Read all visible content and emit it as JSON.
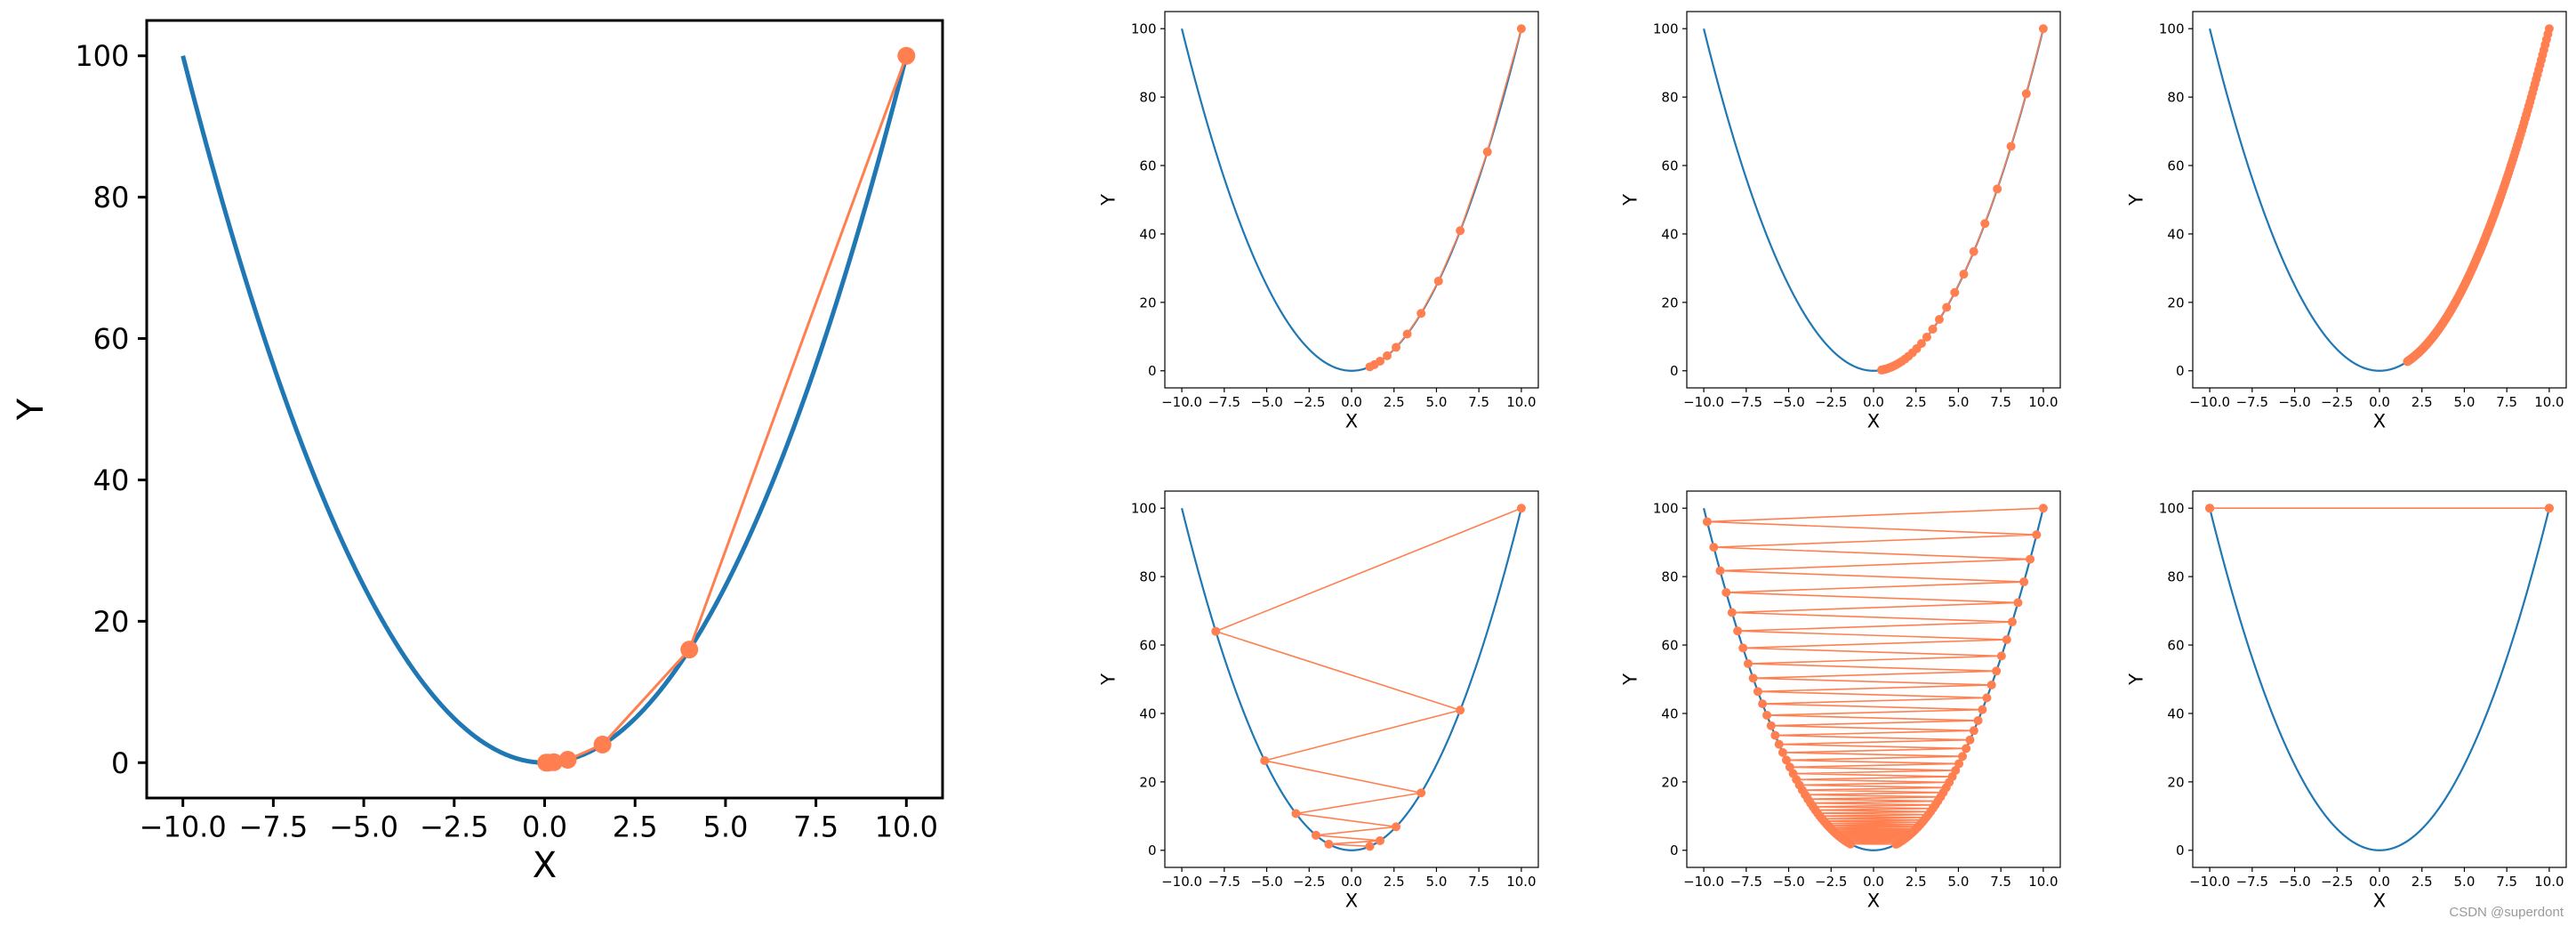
{
  "colors": {
    "curve": "#1f77b4",
    "path": "#ff7f50"
  },
  "watermark": "CSDN @superdont",
  "chart_data": [
    {
      "type": "line",
      "xlabel": "X",
      "ylabel": "Y",
      "xlim": [
        -11,
        11
      ],
      "ylim": [
        -5,
        105
      ],
      "xticks": [
        -10.0,
        -7.5,
        -5.0,
        -2.5,
        0.0,
        2.5,
        5.0,
        7.5,
        10.0
      ],
      "xtick_labels": [
        "−10.0",
        "−7.5",
        "−5.0",
        "−2.5",
        "0.0",
        "2.5",
        "5.0",
        "7.5",
        "10.0"
      ],
      "yticks": [
        0,
        20,
        40,
        60,
        80,
        100
      ],
      "ytick_labels": [
        "0",
        "20",
        "40",
        "60",
        "80",
        "100"
      ],
      "curve": {
        "x_range": [
          -10,
          10
        ],
        "function": "y = x^2"
      },
      "path_x": [
        10,
        4,
        1.6,
        0.64,
        0.256,
        0.1024,
        0.041
      ]
    },
    {
      "type": "line",
      "xlabel": "X",
      "ylabel": "Y",
      "xlim": [
        -11,
        11
      ],
      "ylim": [
        -5,
        105
      ],
      "xticks": [
        -10.0,
        -7.5,
        -5.0,
        -2.5,
        0.0,
        2.5,
        5.0,
        7.5,
        10.0
      ],
      "xtick_labels": [
        "−10.0",
        "−7.5",
        "−5.0",
        "−2.5",
        "0.0",
        "2.5",
        "5.0",
        "7.5",
        "10.0"
      ],
      "yticks": [
        0,
        20,
        40,
        60,
        80,
        100
      ],
      "ytick_labels": [
        "0",
        "20",
        "40",
        "60",
        "80",
        "100"
      ],
      "curve": {
        "x_range": [
          -10,
          10
        ],
        "function": "y = x^2"
      },
      "path_x": [
        10,
        8,
        6.4,
        5.12,
        4.096,
        3.277,
        2.621,
        2.097,
        1.678,
        1.342,
        1.074
      ]
    },
    {
      "type": "line",
      "xlabel": "X",
      "ylabel": "Y",
      "xlim": [
        -11,
        11
      ],
      "ylim": [
        -5,
        105
      ],
      "xticks": [
        -10.0,
        -7.5,
        -5.0,
        -2.5,
        0.0,
        2.5,
        5.0,
        7.5,
        10.0
      ],
      "xtick_labels": [
        "−10.0",
        "−7.5",
        "−5.0",
        "−2.5",
        "0.0",
        "2.5",
        "5.0",
        "7.5",
        "10.0"
      ],
      "yticks": [
        0,
        20,
        40,
        60,
        80,
        100
      ],
      "ytick_labels": [
        "0",
        "20",
        "40",
        "60",
        "80",
        "100"
      ],
      "curve": {
        "x_range": [
          -10,
          10
        ],
        "function": "y = x^2"
      },
      "path_x": [
        10,
        9,
        8.1,
        7.29,
        6.561,
        5.905,
        5.314,
        4.783,
        4.305,
        3.874,
        3.487,
        3.138,
        2.824,
        2.542,
        2.288,
        2.059,
        1.853,
        1.668,
        1.501,
        1.351,
        1.216,
        1.094,
        0.985,
        0.886,
        0.798,
        0.718,
        0.646,
        0.581,
        0.523,
        0.471
      ]
    },
    {
      "type": "line",
      "xlabel": "X",
      "ylabel": "Y",
      "xlim": [
        -11,
        11
      ],
      "ylim": [
        -5,
        105
      ],
      "xticks": [
        -10.0,
        -7.5,
        -5.0,
        -2.5,
        0.0,
        2.5,
        5.0,
        7.5,
        10.0
      ],
      "xtick_labels": [
        "−10.0",
        "−7.5",
        "−5.0",
        "−2.5",
        "0.0",
        "2.5",
        "5.0",
        "7.5",
        "10.0"
      ],
      "yticks": [
        0,
        20,
        40,
        60,
        80,
        100
      ],
      "ytick_labels": [
        "0",
        "20",
        "40",
        "60",
        "80",
        "100"
      ],
      "curve": {
        "x_range": [
          -10,
          10
        ],
        "function": "y = x^2"
      },
      "path_x": [
        10,
        9.92,
        9.841,
        9.763,
        9.685,
        9.608,
        9.531,
        9.455,
        9.379,
        9.304,
        9.23,
        9.156,
        9.083,
        9.01,
        8.938,
        8.866,
        8.795,
        8.725,
        8.655,
        8.586,
        8.517,
        8.449,
        8.381,
        8.314,
        8.248,
        8.182,
        8.116,
        8.051,
        7.987,
        7.923,
        7.86,
        7.797,
        7.735,
        7.673,
        7.611,
        7.55,
        7.49,
        7.43,
        7.371,
        7.312,
        7.253,
        7.195,
        7.138,
        7.081,
        7.024,
        6.968,
        6.912,
        6.857,
        6.802,
        6.748,
        6.694,
        6.64,
        6.587,
        6.534,
        6.482,
        6.43,
        6.379,
        6.328,
        6.277,
        6.227,
        6.177,
        6.128,
        6.079,
        6.03,
        5.982,
        5.934,
        5.887,
        5.839,
        5.793,
        5.746,
        5.7,
        5.655,
        5.609,
        5.565,
        5.52,
        5.476,
        5.432,
        5.389,
        5.346,
        5.303,
        5.26,
        5.218,
        5.177,
        5.135,
        5.094,
        5.053,
        5.013,
        4.973,
        4.933,
        4.894,
        4.855,
        4.816,
        4.777,
        4.739,
        4.701,
        4.664,
        4.626,
        4.589,
        4.553,
        4.516,
        4.48,
        4.444,
        4.409,
        4.373,
        4.338,
        4.304,
        4.269,
        4.235,
        4.201,
        4.168,
        4.134,
        4.101,
        4.069,
        4.036,
        4.004,
        3.972,
        3.94,
        3.909,
        3.877,
        3.846,
        3.816,
        3.785,
        3.755,
        3.725,
        3.695,
        3.666,
        3.636,
        3.607,
        3.579,
        3.55,
        3.522,
        3.493,
        3.466,
        3.438,
        3.41,
        3.383,
        3.356,
        3.329,
        3.303,
        3.276,
        3.25,
        3.224,
        3.198,
        3.173,
        3.147,
        3.122,
        3.097,
        3.072,
        3.048,
        3.023,
        2.999,
        2.975,
        2.951,
        2.928,
        2.904,
        2.881,
        2.858,
        2.835,
        2.812,
        2.79,
        2.768,
        2.745,
        2.723,
        2.702,
        2.68,
        2.659,
        2.637,
        2.616,
        2.595,
        2.574,
        2.554,
        2.533,
        2.513,
        2.493,
        2.473,
        2.453,
        2.434,
        2.414,
        2.395,
        2.376,
        2.357,
        2.338,
        2.319,
        2.301,
        2.282,
        2.264,
        2.246,
        2.228,
        2.21,
        2.192,
        2.175,
        2.157,
        2.14,
        2.123,
        2.106,
        2.089,
        2.072,
        2.056,
        2.039,
        2.023,
        2.007,
        1.991,
        1.975,
        1.959,
        1.943,
        1.928,
        1.912,
        1.897,
        1.882,
        1.867,
        1.852,
        1.837,
        1.822,
        1.808,
        1.793,
        1.779,
        1.765,
        1.751,
        1.737,
        1.723,
        1.709,
        1.695,
        1.682,
        1.668,
        1.655,
        1.642
      ]
    },
    {
      "type": "line",
      "xlabel": "X",
      "ylabel": "Y",
      "xlim": [
        -11,
        11
      ],
      "ylim": [
        -5,
        105
      ],
      "xticks": [
        -10.0,
        -7.5,
        -5.0,
        -2.5,
        0.0,
        2.5,
        5.0,
        7.5,
        10.0
      ],
      "xtick_labels": [
        "−10.0",
        "−7.5",
        "−5.0",
        "−2.5",
        "0.0",
        "2.5",
        "5.0",
        "7.5",
        "10.0"
      ],
      "yticks": [
        0,
        20,
        40,
        60,
        80,
        100
      ],
      "ytick_labels": [
        "0",
        "20",
        "40",
        "60",
        "80",
        "100"
      ],
      "curve": {
        "x_range": [
          -10,
          10
        ],
        "function": "y = x^2"
      },
      "path_x": [
        10,
        -8,
        6.4,
        -5.12,
        4.096,
        -3.277,
        2.621,
        -2.097,
        1.678,
        -1.342,
        1.074
      ]
    },
    {
      "type": "line",
      "xlabel": "X",
      "ylabel": "Y",
      "xlim": [
        -11,
        11
      ],
      "ylim": [
        -5,
        105
      ],
      "xticks": [
        -10.0,
        -7.5,
        -5.0,
        -2.5,
        0.0,
        2.5,
        5.0,
        7.5,
        10.0
      ],
      "xtick_labels": [
        "−10.0",
        "−7.5",
        "−5.0",
        "−2.5",
        "0.0",
        "2.5",
        "5.0",
        "7.5",
        "10.0"
      ],
      "yticks": [
        0,
        20,
        40,
        60,
        80,
        100
      ],
      "ytick_labels": [
        "0",
        "20",
        "40",
        "60",
        "80",
        "100"
      ],
      "curve": {
        "x_range": [
          -10,
          10
        ],
        "function": "y = x^2"
      },
      "path_x": [
        10,
        -9.8,
        9.604,
        -9.412,
        9.224,
        -9.039,
        8.858,
        -8.681,
        8.508,
        -8.337,
        8.171,
        -8.007,
        7.847,
        -7.69,
        7.536,
        -7.386,
        7.238,
        -7.093,
        6.951,
        -6.812,
        6.676,
        -6.543,
        6.412,
        -6.283,
        6.158,
        -6.035,
        5.914,
        -5.796,
        5.68,
        -5.566,
        5.455,
        -5.346,
        5.239,
        -5.134,
        5.031,
        -4.931,
        4.832,
        -4.735,
        4.641,
        -4.548,
        4.457,
        -4.368,
        4.281,
        -4.195,
        4.111,
        -4.029,
        3.948,
        -3.869,
        3.792,
        -3.716,
        3.642,
        -3.569,
        3.497,
        -3.428,
        3.359,
        -3.292,
        3.226,
        -3.162,
        3.098,
        -3.036,
        2.976,
        -2.916,
        2.858,
        -2.8,
        2.744,
        -2.69,
        2.636,
        -2.583,
        2.531,
        -2.481,
        2.431,
        -2.382,
        2.335,
        -2.288,
        2.242,
        -2.197,
        2.153,
        -2.11,
        2.068,
        -2.027,
        1.986,
        -1.946,
        1.908,
        -1.869,
        1.832,
        -1.795,
        1.759,
        -1.724,
        1.69,
        -1.656,
        1.623,
        -1.59,
        1.559,
        -1.527,
        1.497,
        -1.467,
        1.438,
        -1.409,
        1.381,
        -1.353,
        1.326
      ]
    },
    {
      "type": "line",
      "xlabel": "X",
      "ylabel": "Y",
      "xlim": [
        -11,
        11
      ],
      "ylim": [
        -5,
        105
      ],
      "xticks": [
        -10.0,
        -7.5,
        -5.0,
        -2.5,
        0.0,
        2.5,
        5.0,
        7.5,
        10.0
      ],
      "xtick_labels": [
        "−10.0",
        "−7.5",
        "−5.0",
        "−2.5",
        "0.0",
        "2.5",
        "5.0",
        "7.5",
        "10.0"
      ],
      "yticks": [
        0,
        20,
        40,
        60,
        80,
        100
      ],
      "ytick_labels": [
        "0",
        "20",
        "40",
        "60",
        "80",
        "100"
      ],
      "curve": {
        "x_range": [
          -10,
          10
        ],
        "function": "y = x^2"
      },
      "path_x": [
        10,
        -10,
        10,
        -10,
        10,
        -10
      ]
    }
  ]
}
